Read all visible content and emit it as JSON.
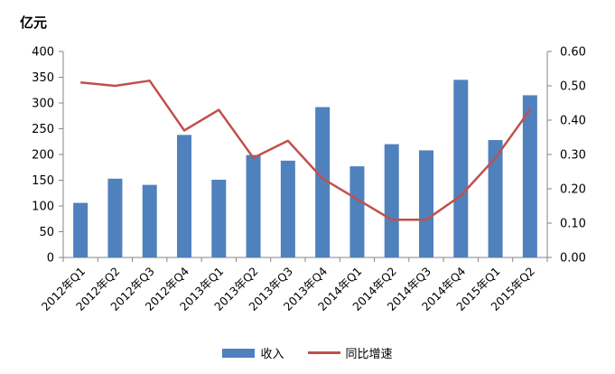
{
  "unit_label": "亿元",
  "chart_data": {
    "type": "bar+line",
    "categories": [
      "2012年Q1",
      "2012年Q2",
      "2012年Q3",
      "2012年Q4",
      "2013年Q1",
      "2013年Q2",
      "2013年Q3",
      "2013年Q4",
      "2014年Q1",
      "2014年Q2",
      "2014年Q3",
      "2014年Q4",
      "2015年Q1",
      "2015年Q2"
    ],
    "series": [
      {
        "name": "收入",
        "type": "bar",
        "axis": "left",
        "color": "#4F81BD",
        "values": [
          106,
          153,
          141,
          238,
          151,
          199,
          188,
          292,
          177,
          220,
          208,
          345,
          228,
          315
        ]
      },
      {
        "name": "同比增速",
        "type": "line",
        "axis": "right",
        "color": "#C0504D",
        "values": [
          0.51,
          0.5,
          0.515,
          0.37,
          0.43,
          0.29,
          0.34,
          0.23,
          0.17,
          0.11,
          0.11,
          0.18,
          0.29,
          0.43
        ]
      }
    ],
    "y_left": {
      "min": 0,
      "max": 400,
      "ticks": [
        "0",
        "50",
        "100",
        "150",
        "200",
        "250",
        "300",
        "350",
        "400"
      ]
    },
    "y_right": {
      "min": 0,
      "max": 0.6,
      "ticks": [
        "0.00",
        "0.10",
        "0.20",
        "0.30",
        "0.40",
        "0.50",
        "0.60"
      ]
    },
    "grid": false,
    "legend_position": "bottom"
  }
}
